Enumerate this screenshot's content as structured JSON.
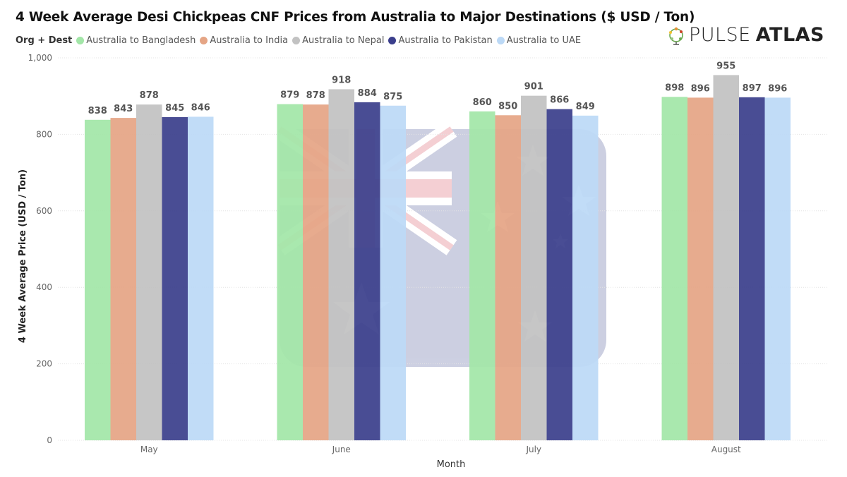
{
  "chart_data": {
    "type": "bar",
    "title": "4 Week Average Desi Chickpeas CNF Prices from Australia to Major Destinations ($ USD / Ton)",
    "legend_title": "Org + Dest",
    "legend_position": "top-left",
    "xlabel": "Month",
    "ylabel": "4 Week Average Price (USD / Ton)",
    "categories": [
      "May",
      "June",
      "July",
      "August"
    ],
    "ylim": [
      0,
      1000
    ],
    "yticks": [
      0,
      200,
      400,
      600,
      800,
      1000
    ],
    "ytick_labels": [
      "0",
      "200",
      "400",
      "600",
      "800",
      "1,000"
    ],
    "grid": true,
    "series": [
      {
        "name": "Australia to Bangladesh",
        "color": "#a3e6a8",
        "values": [
          838,
          879,
          860,
          898
        ]
      },
      {
        "name": "Australia to India",
        "color": "#e5a585",
        "values": [
          843,
          878,
          850,
          896
        ]
      },
      {
        "name": "Australia to Nepal",
        "color": "#c2c2c2",
        "values": [
          878,
          918,
          901,
          955
        ]
      },
      {
        "name": "Australia to Pakistan",
        "color": "#3b3f8c",
        "values": [
          845,
          884,
          866,
          897
        ]
      },
      {
        "name": "Australia to UAE",
        "color": "#bcd9f6",
        "values": [
          846,
          875,
          849,
          896
        ]
      }
    ]
  },
  "brand": {
    "logo_text_a": "PULSE",
    "logo_text_b": "ATLAS",
    "logo_icon": "globe-leaf-icon"
  },
  "watermark": {
    "icon": "australian-flag-icon"
  }
}
